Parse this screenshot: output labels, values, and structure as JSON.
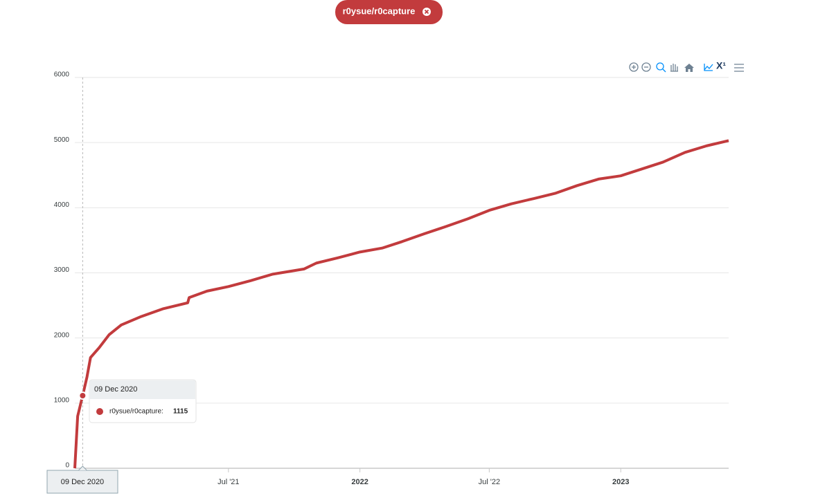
{
  "chart_data": {
    "type": "line",
    "x": [
      "2020-11-28",
      "2020-12-02",
      "2020-12-09",
      "2020-12-15",
      "2020-12-20",
      "2021-01-01",
      "2021-01-15",
      "2021-02-01",
      "2021-03-01",
      "2021-04-01",
      "2021-05-05",
      "2021-05-07",
      "2021-06-01",
      "2021-07-01",
      "2021-08-01",
      "2021-09-01",
      "2021-10-15",
      "2021-11-01",
      "2021-12-01",
      "2022-01-01",
      "2022-02-01",
      "2022-03-01",
      "2022-04-01",
      "2022-05-01",
      "2022-06-01",
      "2022-07-01",
      "2022-08-01",
      "2022-09-01",
      "2022-10-01",
      "2022-11-01",
      "2022-12-01",
      "2023-01-01",
      "2023-02-01",
      "2023-03-01",
      "2023-04-01",
      "2023-05-01",
      "2023-06-01"
    ],
    "series": [
      {
        "name": "r0ysue/r0capture",
        "color": "#c23b3d",
        "values": [
          0,
          800,
          1115,
          1400,
          1700,
          1850,
          2050,
          2200,
          2330,
          2450,
          2540,
          2620,
          2720,
          2790,
          2880,
          2980,
          3060,
          3150,
          3230,
          3320,
          3380,
          3480,
          3600,
          3710,
          3830,
          3960,
          4060,
          4140,
          4220,
          4340,
          4440,
          4490,
          4600,
          4700,
          4850,
          4950,
          5030
        ]
      }
    ],
    "xlim": [
      "2020-11-28",
      "2023-06-01"
    ],
    "xticks": [
      {
        "value": "2021-07-01",
        "label": "Jul '21"
      },
      {
        "value": "2022-01-01",
        "label": "2022"
      },
      {
        "value": "2022-07-01",
        "label": "Jul '22"
      },
      {
        "value": "2023-01-01",
        "label": "2023"
      }
    ],
    "ylim": [
      0,
      6000
    ],
    "yticks": [
      0,
      1000,
      2000,
      3000,
      4000,
      5000,
      6000
    ],
    "grid": true,
    "tooltip": {
      "index": 2,
      "date": "09 Dec 2020",
      "label": "r0ysue/r0capture:"
    },
    "toolbar_log": "X¹"
  }
}
